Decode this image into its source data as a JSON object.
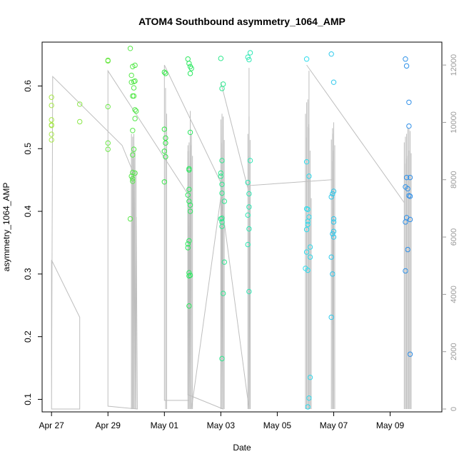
{
  "chart_data": {
    "type": "scatter",
    "title": "ATOM4 Southbound asymmetry_1064_AMP",
    "xlabel": "Date",
    "ylabel": "asymmetry_1064_AMP",
    "x_is_date": true,
    "xlim": [
      "2023-04-26T16:00",
      "2023-05-10T20:00"
    ],
    "ylim": [
      0.08,
      0.67
    ],
    "y_ticks": [
      0.1,
      0.2,
      0.3,
      0.4,
      0.5,
      0.6
    ],
    "x_tick_labels": [
      "Apr 27",
      "Apr 29",
      "May 01",
      "May 03",
      "May 05",
      "May 07",
      "May 09"
    ],
    "x_ticks": [
      "2023-04-27T00:00",
      "2023-04-29T00:00",
      "2023-05-01T00:00",
      "2023-05-03T00:00",
      "2023-05-05T00:00",
      "2023-05-07T00:00",
      "2023-05-09T00:00"
    ],
    "y2lim": [
      -100,
      12800
    ],
    "y2_ticks": [
      0,
      2000,
      4000,
      6000,
      8000,
      10000,
      12000
    ],
    "grid": false,
    "legend": "none",
    "colors": {
      "line": "#bebebe",
      "axis": "#000000",
      "right_axis": "#999999",
      "point_gradient": [
        "#a8e84a",
        "#2ee848",
        "#2ee8ee",
        "#2f8ee8"
      ]
    },
    "points": [
      [
        "2023-04-27T00:00",
        0.582
      ],
      [
        "2023-04-27T00:00",
        0.569
      ],
      [
        "2023-04-27T00:00",
        0.546
      ],
      [
        "2023-04-27T00:00",
        0.537
      ],
      [
        "2023-04-27T00:00",
        0.538
      ],
      [
        "2023-04-27T00:00",
        0.523
      ],
      [
        "2023-04-27T00:00",
        0.514
      ],
      [
        "2023-04-28T00:00",
        0.571
      ],
      [
        "2023-04-28T00:00",
        0.543
      ],
      [
        "2023-04-29T00:00",
        0.641
      ],
      [
        "2023-04-29T00:00",
        0.64
      ],
      [
        "2023-04-29T00:00",
        0.567
      ],
      [
        "2023-04-29T00:00",
        0.509
      ],
      [
        "2023-04-29T00:00",
        0.499
      ],
      [
        "2023-04-29T19:00",
        0.66
      ],
      [
        "2023-04-29T21:00",
        0.631
      ],
      [
        "2023-04-29T20:00",
        0.617
      ],
      [
        "2023-04-29T23:00",
        0.633
      ],
      [
        "2023-04-29T20:00",
        0.606
      ],
      [
        "2023-04-29T22:00",
        0.607
      ],
      [
        "2023-04-29T23:00",
        0.608
      ],
      [
        "2023-04-29T22:00",
        0.597
      ],
      [
        "2023-04-29T21:00",
        0.584
      ],
      [
        "2023-04-29T22:00",
        0.584
      ],
      [
        "2023-04-29T23:00",
        0.562
      ],
      [
        "2023-04-30T00:00",
        0.56
      ],
      [
        "2023-04-29T23:00",
        0.548
      ],
      [
        "2023-04-29T21:00",
        0.529
      ],
      [
        "2023-04-29T22:00",
        0.499
      ],
      [
        "2023-04-29T21:00",
        0.49
      ],
      [
        "2023-04-29T21:00",
        0.462
      ],
      [
        "2023-04-29T23:00",
        0.461
      ],
      [
        "2023-04-29T20:00",
        0.456
      ],
      [
        "2023-04-29T21:00",
        0.452
      ],
      [
        "2023-04-29T21:00",
        0.448
      ],
      [
        "2023-04-29T19:00",
        0.388
      ],
      [
        "2023-05-01T00:00",
        0.622
      ],
      [
        "2023-05-01T01:00",
        0.62
      ],
      [
        "2023-05-01T00:00",
        0.531
      ],
      [
        "2023-05-01T01:00",
        0.517
      ],
      [
        "2023-05-01T01:00",
        0.509
      ],
      [
        "2023-05-01T00:00",
        0.496
      ],
      [
        "2023-05-01T01:00",
        0.487
      ],
      [
        "2023-05-01T00:00",
        0.447
      ],
      [
        "2023-05-01T20:00",
        0.643
      ],
      [
        "2023-05-01T21:00",
        0.636
      ],
      [
        "2023-05-01T22:00",
        0.631
      ],
      [
        "2023-05-01T23:00",
        0.628
      ],
      [
        "2023-05-01T22:00",
        0.62
      ],
      [
        "2023-05-01T22:00",
        0.526
      ],
      [
        "2023-05-01T21:00",
        0.468
      ],
      [
        "2023-05-01T21:00",
        0.466
      ],
      [
        "2023-05-01T21:00",
        0.435
      ],
      [
        "2023-05-01T20:00",
        0.426
      ],
      [
        "2023-05-01T21:00",
        0.416
      ],
      [
        "2023-05-01T22:00",
        0.41
      ],
      [
        "2023-05-01T22:00",
        0.4
      ],
      [
        "2023-05-01T21:00",
        0.353
      ],
      [
        "2023-05-01T20:00",
        0.348
      ],
      [
        "2023-05-01T20:00",
        0.342
      ],
      [
        "2023-05-01T21:00",
        0.302
      ],
      [
        "2023-05-01T22:00",
        0.298
      ],
      [
        "2023-05-01T21:00",
        0.297
      ],
      [
        "2023-05-01T21:00",
        0.249
      ],
      [
        "2023-05-03T00:00",
        0.644
      ],
      [
        "2023-05-03T02:00",
        0.603
      ],
      [
        "2023-05-03T01:00",
        0.596
      ],
      [
        "2023-05-03T01:00",
        0.481
      ],
      [
        "2023-05-03T00:00",
        0.461
      ],
      [
        "2023-05-03T00:00",
        0.456
      ],
      [
        "2023-05-03T01:00",
        0.443
      ],
      [
        "2023-05-03T01:00",
        0.429
      ],
      [
        "2023-05-03T03:00",
        0.416
      ],
      [
        "2023-05-03T00:00",
        0.388
      ],
      [
        "2023-05-03T01:00",
        0.389
      ],
      [
        "2023-05-03T01:00",
        0.383
      ],
      [
        "2023-05-03T01:00",
        0.376
      ],
      [
        "2023-05-03T03:00",
        0.319
      ],
      [
        "2023-05-03T02:00",
        0.269
      ],
      [
        "2023-05-03T01:00",
        0.165
      ],
      [
        "2023-05-03T23:00",
        0.646
      ],
      [
        "2023-05-04T00:00",
        0.642
      ],
      [
        "2023-05-04T01:00",
        0.653
      ],
      [
        "2023-05-04T01:00",
        0.481
      ],
      [
        "2023-05-03T23:00",
        0.446
      ],
      [
        "2023-05-04T00:00",
        0.428
      ],
      [
        "2023-05-04T00:00",
        0.407
      ],
      [
        "2023-05-03T23:00",
        0.394
      ],
      [
        "2023-05-04T00:00",
        0.372
      ],
      [
        "2023-05-03T23:00",
        0.347
      ],
      [
        "2023-05-04T00:00",
        0.272
      ],
      [
        "2023-05-06T01:00",
        0.643
      ],
      [
        "2023-05-06T01:00",
        0.479
      ],
      [
        "2023-05-06T03:00",
        0.456
      ],
      [
        "2023-05-06T01:00",
        0.404
      ],
      [
        "2023-05-06T02:00",
        0.403
      ],
      [
        "2023-05-06T03:00",
        0.391
      ],
      [
        "2023-05-06T02:00",
        0.384
      ],
      [
        "2023-05-06T02:00",
        0.379
      ],
      [
        "2023-05-06T01:00",
        0.371
      ],
      [
        "2023-05-06T04:00",
        0.343
      ],
      [
        "2023-05-06T01:00",
        0.335
      ],
      [
        "2023-05-06T04:00",
        0.327
      ],
      [
        "2023-05-06T00:00",
        0.309
      ],
      [
        "2023-05-06T02:00",
        0.306
      ],
      [
        "2023-05-06T04:00",
        0.135
      ],
      [
        "2023-05-06T03:00",
        0.102
      ],
      [
        "2023-05-06T02:00",
        0.088
      ],
      [
        "2023-05-06T22:00",
        0.651
      ],
      [
        "2023-05-07T00:00",
        0.606
      ],
      [
        "2023-05-07T00:00",
        0.432
      ],
      [
        "2023-05-06T23:00",
        0.428
      ],
      [
        "2023-05-06T22:00",
        0.423
      ],
      [
        "2023-05-07T00:00",
        0.388
      ],
      [
        "2023-05-07T00:00",
        0.383
      ],
      [
        "2023-05-07T00:00",
        0.368
      ],
      [
        "2023-05-06T23:00",
        0.364
      ],
      [
        "2023-05-07T00:00",
        0.359
      ],
      [
        "2023-05-06T22:00",
        0.327
      ],
      [
        "2023-05-06T23:00",
        0.3
      ],
      [
        "2023-05-06T22:00",
        0.231
      ],
      [
        "2023-05-09T13:00",
        0.643
      ],
      [
        "2023-05-09T14:00",
        0.632
      ],
      [
        "2023-05-09T16:00",
        0.574
      ],
      [
        "2023-05-09T16:00",
        0.536
      ],
      [
        "2023-05-09T14:00",
        0.454
      ],
      [
        "2023-05-09T17:00",
        0.454
      ],
      [
        "2023-05-09T13:00",
        0.439
      ],
      [
        "2023-05-09T15:00",
        0.436
      ],
      [
        "2023-05-09T16:00",
        0.425
      ],
      [
        "2023-05-09T17:00",
        0.424
      ],
      [
        "2023-05-09T14:00",
        0.39
      ],
      [
        "2023-05-09T17:00",
        0.387
      ],
      [
        "2023-05-09T13:00",
        0.383
      ],
      [
        "2023-05-09T15:00",
        0.339
      ],
      [
        "2023-05-09T13:00",
        0.305
      ],
      [
        "2023-05-09T17:00",
        0.172
      ]
    ],
    "line_y2": [
      [
        "2023-04-27T00:00",
        5200
      ],
      [
        "2023-04-27T00:00",
        200
      ],
      [
        "2023-04-27T00:00",
        5200
      ],
      [
        "2023-04-28T00:00",
        3200
      ],
      [
        "2023-04-28T00:00",
        0
      ],
      [
        "2023-04-28T00:00",
        0
      ],
      [
        "2023-04-27T00:00",
        0
      ],
      [
        "2023-04-27T01:00",
        11600
      ],
      [
        "2023-04-29T12:00",
        9200
      ],
      [
        "2023-04-29T21:00",
        8300
      ],
      [
        "2023-04-29T21:00",
        500
      ],
      [
        "2023-04-29T22:00",
        9600
      ],
      [
        "2023-04-29T23:00",
        300
      ],
      [
        "2023-04-30T00:00",
        6700
      ],
      [
        "2023-04-30T01:00",
        100
      ],
      [
        "2023-04-30T01:00",
        0
      ],
      [
        "2023-04-29T00:00",
        100
      ],
      [
        "2023-04-29T00:00",
        11800
      ],
      [
        "2023-05-01T20:00",
        7500
      ],
      [
        "2023-05-01T21:00",
        0
      ],
      [
        "2023-05-01T21:00",
        300
      ],
      [
        "2023-05-01T00:00",
        300
      ],
      [
        "2023-05-01T00:00",
        12000
      ],
      [
        "2023-05-03T00:00",
        7900
      ],
      [
        "2023-05-03T00:00",
        0
      ],
      [
        "2023-05-03T01:00",
        10100
      ],
      [
        "2023-05-03T01:00",
        0
      ],
      [
        "2023-05-03T02:00",
        10200
      ],
      [
        "2023-05-03T02:00",
        0
      ],
      [
        "2023-05-01T20:00",
        500
      ],
      [
        "2023-05-01T20:00",
        9000
      ],
      [
        "2023-05-01T21:00",
        0
      ],
      [
        "2023-05-01T21:00",
        9000
      ],
      [
        "2023-05-01T22:00",
        0
      ],
      [
        "2023-05-01T22:00",
        10400
      ],
      [
        "2023-05-01T23:00",
        0
      ],
      [
        "2023-05-03T00:00",
        7400
      ],
      [
        "2023-05-04T00:00",
        0
      ],
      [
        "2023-05-04T00:00",
        9500
      ],
      [
        "2023-05-04T01:00",
        0
      ],
      [
        "2023-05-04T01:00",
        7800
      ],
      [
        "2023-05-06T23:00",
        8000
      ],
      [
        "2023-05-06T23:00",
        9600
      ],
      [
        "2023-05-07T00:00",
        0
      ],
      [
        "2023-05-07T00:00",
        9700
      ],
      [
        "2023-05-07T00:00",
        200
      ]
    ],
    "line_y2_rises": [
      [
        "2023-05-03T00:00",
        11400,
        "2023-05-03T23:00",
        7700
      ],
      [
        "2023-05-06T01:00",
        12000,
        "2023-05-09T12:00",
        7200
      ],
      [
        "2023-05-06T03:00",
        11800,
        "2023-05-06T03:00",
        0
      ],
      [
        "2023-05-04T00:00",
        11900,
        "2023-05-04T00:00",
        0
      ]
    ],
    "spikes_y2": [
      [
        "2023-04-29T20:00",
        0,
        9600
      ],
      [
        "2023-04-29T20:00",
        0,
        9000
      ],
      [
        "2023-04-29T21:00",
        0,
        9500
      ],
      [
        "2023-04-29T22:00",
        0,
        9500
      ],
      [
        "2023-04-29T23:00",
        0,
        9000
      ],
      [
        "2023-05-01T01:00",
        0,
        11200
      ],
      [
        "2023-05-01T20:00",
        0,
        9200
      ],
      [
        "2023-05-01T21:00",
        0,
        9300
      ],
      [
        "2023-05-01T22:00",
        0,
        10000
      ],
      [
        "2023-05-01T23:00",
        0,
        9600
      ],
      [
        "2023-05-03T00:00",
        0,
        10100
      ],
      [
        "2023-05-03T01:00",
        0,
        10300
      ],
      [
        "2023-05-03T02:00",
        0,
        10200
      ],
      [
        "2023-05-03T23:00",
        0,
        9600
      ],
      [
        "2023-05-04T00:00",
        0,
        10200
      ],
      [
        "2023-05-06T00:00",
        0,
        10300
      ],
      [
        "2023-05-06T01:00",
        0,
        10700
      ],
      [
        "2023-05-06T02:00",
        0,
        10800
      ],
      [
        "2023-05-06T03:00",
        0,
        9800
      ],
      [
        "2023-05-06T04:00",
        0,
        8000
      ],
      [
        "2023-05-06T22:00",
        0,
        9400
      ],
      [
        "2023-05-06T23:00",
        0,
        9800
      ],
      [
        "2023-05-07T00:00",
        0,
        10000
      ],
      [
        "2023-05-09T12:00",
        0,
        9300
      ],
      [
        "2023-05-09T13:00",
        0,
        9500
      ],
      [
        "2023-05-09T14:00",
        0,
        9600
      ],
      [
        "2023-05-09T15:00",
        0,
        9800
      ],
      [
        "2023-05-09T16:00",
        0,
        9800
      ],
      [
        "2023-05-09T17:00",
        0,
        9700
      ]
    ]
  }
}
